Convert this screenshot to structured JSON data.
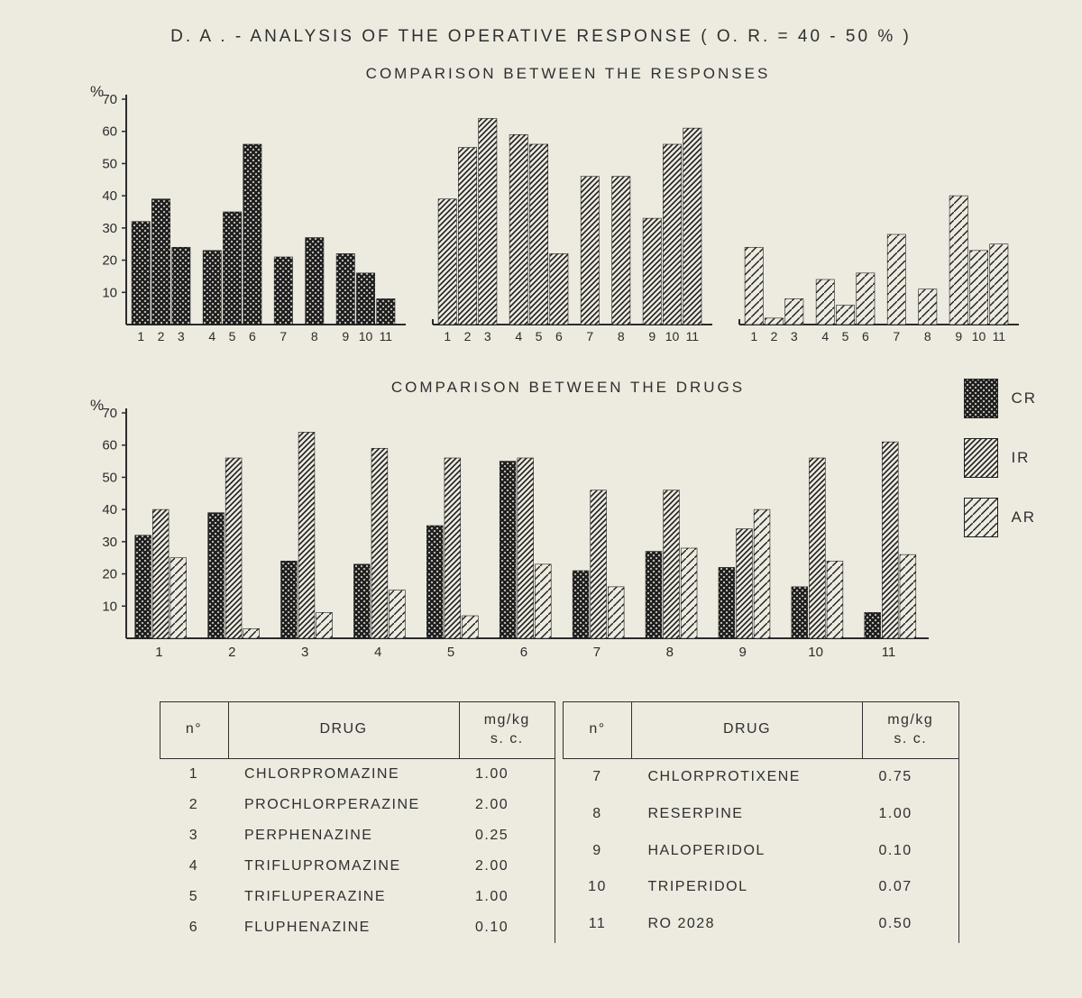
{
  "title": "D. A . - ANALYSIS  OF  THE  OPERATIVE  RESPONSE    ( O. R. = 40 - 50 % )",
  "chart1": {
    "subtitle": "COMPARISON  BETWEEN  THE  RESPONSES",
    "yaxis": "%",
    "ylim": [
      0,
      70
    ],
    "ytick_step": 10,
    "bg": "#edeae0",
    "axis_color": "#2b2b2b",
    "x_labels": [
      "1",
      "2",
      "3",
      "4",
      "5",
      "6",
      "7",
      "8",
      "9",
      "10",
      "11"
    ],
    "group_gaps_after": [
      3,
      6,
      7,
      8
    ],
    "series": [
      {
        "name": "CR",
        "pattern": "cross",
        "color": "#2b2b2b",
        "values": [
          32,
          39,
          24,
          23,
          35,
          56,
          null,
          21,
          27,
          22,
          16,
          8
        ]
      },
      {
        "name": "IR",
        "pattern": "diag-dense",
        "color": "#2b2b2b",
        "values": [
          39,
          55,
          64,
          59,
          56,
          22,
          null,
          46,
          46,
          33,
          56,
          61
        ]
      },
      {
        "name": "AR",
        "pattern": "diag-sparse",
        "color": "#2b2b2b",
        "values": [
          24,
          2,
          8,
          14,
          6,
          16,
          null,
          28,
          11,
          40,
          23,
          25
        ]
      }
    ],
    "label_fontsize": 15
  },
  "chart2": {
    "subtitle": "COMPARISON  BETWEEN  THE  DRUGS",
    "yaxis": "%",
    "ylim": [
      0,
      70
    ],
    "ytick_step": 10,
    "bg": "#edeae0",
    "axis_color": "#2b2b2b",
    "x_labels": [
      "1",
      "2",
      "3",
      "4",
      "5",
      "6",
      "7",
      "8",
      "9",
      "10",
      "11"
    ],
    "groups": [
      {
        "cr": 32,
        "ir": 40,
        "ar": 25
      },
      {
        "cr": 39,
        "ir": 56,
        "ar": 3
      },
      {
        "cr": 24,
        "ir": 64,
        "ar": 8
      },
      {
        "cr": 23,
        "ir": 59,
        "ar": 15
      },
      {
        "cr": 35,
        "ir": 56,
        "ar": 7
      },
      {
        "cr": 55,
        "ir": 56,
        "ar": 23
      },
      {
        "cr": 21,
        "ir": 46,
        "ar": 16
      },
      {
        "cr": 27,
        "ir": 46,
        "ar": 28
      },
      {
        "cr": 22,
        "ir": 34,
        "ar": 40
      },
      {
        "cr": 16,
        "ir": 56,
        "ar": 24
      },
      {
        "cr": 8,
        "ir": 61,
        "ar": 26
      }
    ],
    "label_fontsize": 15
  },
  "legend": {
    "items": [
      {
        "code": "CR",
        "pattern": "cross"
      },
      {
        "code": "IR",
        "pattern": "diag-dense"
      },
      {
        "code": "AR",
        "pattern": "diag-sparse"
      }
    ]
  },
  "table": {
    "headers": [
      "n°",
      "DRUG",
      "mg/kg\ns. c."
    ],
    "left": [
      {
        "n": "1",
        "drug": "CHLORPROMAZINE",
        "dose": "1.00"
      },
      {
        "n": "2",
        "drug": "PROCHLORPERAZINE",
        "dose": "2.00"
      },
      {
        "n": "3",
        "drug": "PERPHENAZINE",
        "dose": "0.25"
      },
      {
        "n": "4",
        "drug": "TRIFLUPROMAZINE",
        "dose": "2.00"
      },
      {
        "n": "5",
        "drug": "TRIFLUPERAZINE",
        "dose": "1.00"
      },
      {
        "n": "6",
        "drug": "FLUPHENAZINE",
        "dose": "0.10"
      }
    ],
    "right": [
      {
        "n": "7",
        "drug": "CHLORPROTIXENE",
        "dose": "0.75"
      },
      {
        "n": "8",
        "drug": "RESERPINE",
        "dose": "1.00"
      },
      {
        "n": "9",
        "drug": "HALOPERIDOL",
        "dose": "0.10"
      },
      {
        "n": "10",
        "drug": "TRIPERIDOL",
        "dose": "0.07"
      },
      {
        "n": "11",
        "drug": "RO 2028",
        "dose": "0.50"
      }
    ]
  },
  "colors": {
    "text": "#2f2f2f",
    "paper": "#edeae0"
  }
}
